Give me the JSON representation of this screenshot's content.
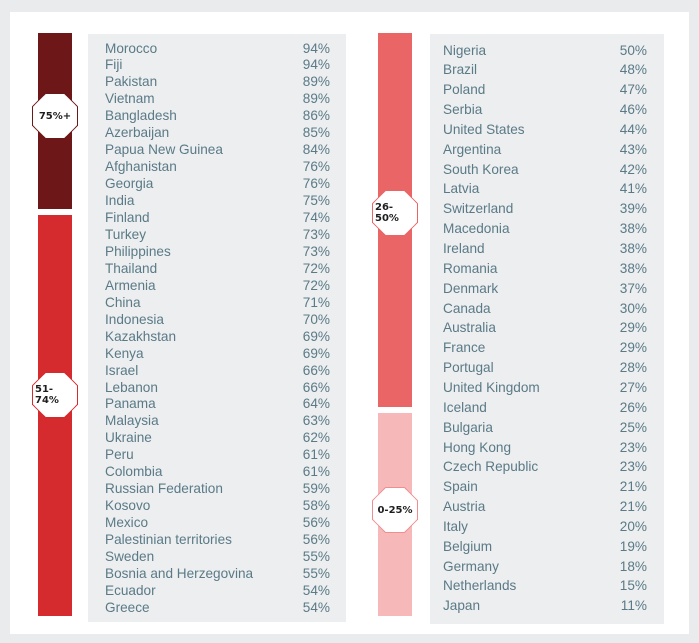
{
  "chart_data": {
    "type": "table",
    "groups": [
      {
        "label": "75%+",
        "color": "#6e1718",
        "badge_border": "#6e1718"
      },
      {
        "label": "51-74%",
        "color": "#d52a2e",
        "badge_border": "#d52a2e"
      },
      {
        "label": "26-50%",
        "color": "#e96566",
        "badge_border": "#e96566"
      },
      {
        "label": "0-25%",
        "color": "#f7b8b9",
        "badge_border": "#ef8d8f"
      }
    ],
    "left_column": [
      {
        "country": "Morocco",
        "value": "94%"
      },
      {
        "country": "Fiji",
        "value": "94%"
      },
      {
        "country": "Pakistan",
        "value": "89%"
      },
      {
        "country": "Vietnam",
        "value": "89%"
      },
      {
        "country": "Bangladesh",
        "value": "86%"
      },
      {
        "country": "Azerbaijan",
        "value": "85%"
      },
      {
        "country": "Papua New Guinea",
        "value": "84%"
      },
      {
        "country": "Afghanistan",
        "value": "76%"
      },
      {
        "country": "Georgia",
        "value": "76%"
      },
      {
        "country": "India",
        "value": "75%"
      },
      {
        "country": "Finland",
        "value": "74%"
      },
      {
        "country": "Turkey",
        "value": "73%"
      },
      {
        "country": "Philippines",
        "value": "73%"
      },
      {
        "country": "Thailand",
        "value": "72%"
      },
      {
        "country": "Armenia",
        "value": "72%"
      },
      {
        "country": "China",
        "value": "71%"
      },
      {
        "country": "Indonesia",
        "value": "70%"
      },
      {
        "country": "Kazakhstan",
        "value": "69%"
      },
      {
        "country": "Kenya",
        "value": "69%"
      },
      {
        "country": "Israel",
        "value": "66%"
      },
      {
        "country": "Lebanon",
        "value": "66%"
      },
      {
        "country": "Panama",
        "value": "64%"
      },
      {
        "country": "Malaysia",
        "value": "63%"
      },
      {
        "country": "Ukraine",
        "value": "62%"
      },
      {
        "country": "Peru",
        "value": "61%"
      },
      {
        "country": "Colombia",
        "value": "61%"
      },
      {
        "country": "Russian Federation",
        "value": "59%"
      },
      {
        "country": "Kosovo",
        "value": "58%"
      },
      {
        "country": "Mexico",
        "value": "56%"
      },
      {
        "country": "Palestinian territories",
        "value": "56%"
      },
      {
        "country": "Sweden",
        "value": "55%"
      },
      {
        "country": "Bosnia and Herzegovina",
        "value": "55%"
      },
      {
        "country": "Ecuador",
        "value": "54%"
      },
      {
        "country": "Greece",
        "value": "54%"
      }
    ],
    "right_column": [
      {
        "country": "Nigeria",
        "value": "50%"
      },
      {
        "country": "Brazil",
        "value": "48%"
      },
      {
        "country": "Poland",
        "value": "47%"
      },
      {
        "country": "Serbia",
        "value": "46%"
      },
      {
        "country": "United States",
        "value": "44%"
      },
      {
        "country": "Argentina",
        "value": "43%"
      },
      {
        "country": "South Korea",
        "value": "42%"
      },
      {
        "country": "Latvia",
        "value": "41%"
      },
      {
        "country": "Switzerland",
        "value": "39%"
      },
      {
        "country": "Macedonia",
        "value": "38%"
      },
      {
        "country": "Ireland",
        "value": "38%"
      },
      {
        "country": "Romania",
        "value": "38%"
      },
      {
        "country": "Denmark",
        "value": "37%"
      },
      {
        "country": "Canada",
        "value": "30%"
      },
      {
        "country": "Australia",
        "value": "29%"
      },
      {
        "country": "France",
        "value": "29%"
      },
      {
        "country": "Portugal",
        "value": "28%"
      },
      {
        "country": "United Kingdom",
        "value": "27%"
      },
      {
        "country": "Iceland",
        "value": "26%"
      },
      {
        "country": "Bulgaria",
        "value": "25%"
      },
      {
        "country": "Hong Kong",
        "value": "23%"
      },
      {
        "country": "Czech Republic",
        "value": "23%"
      },
      {
        "country": "Spain",
        "value": "21%"
      },
      {
        "country": "Austria",
        "value": "21%"
      },
      {
        "country": "Italy",
        "value": "20%"
      },
      {
        "country": "Belgium",
        "value": "19%"
      },
      {
        "country": "Germany",
        "value": "18%"
      },
      {
        "country": "Netherlands",
        "value": "15%"
      },
      {
        "country": "Japan",
        "value": "11%"
      }
    ]
  }
}
